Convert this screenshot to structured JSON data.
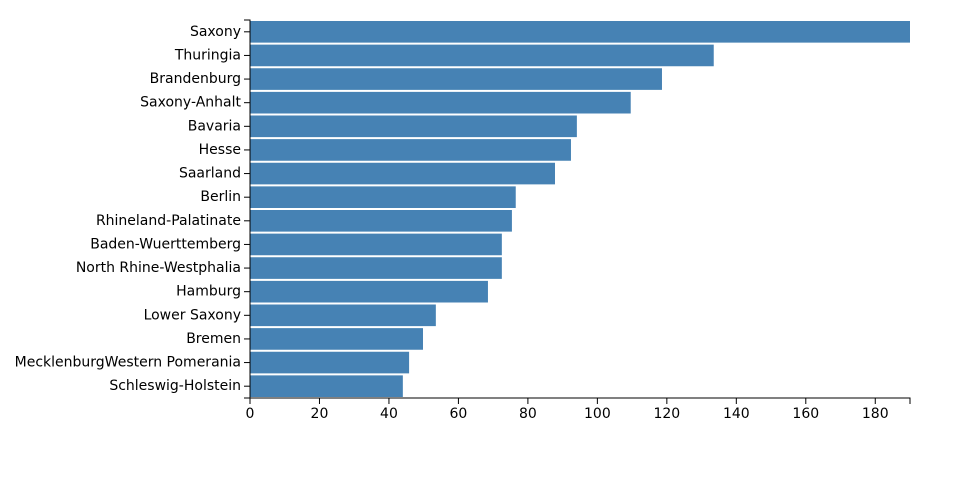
{
  "chart_data": {
    "type": "bar",
    "orientation": "horizontal",
    "categories": [
      "Saxony",
      "Thuringia",
      "Brandenburg",
      "Saxony-Anhalt",
      "Bavaria",
      "Hesse",
      "Saarland",
      "Berlin",
      "Rhineland-Palatinate",
      "Baden-Wuerttemberg",
      "North Rhine-Westphalia",
      "Hamburg",
      "Lower Saxony",
      "Bremen",
      "MecklenburgWestern Pomerania",
      "Schleswig-Holstein"
    ],
    "values": [
      190,
      133.5,
      118.6,
      109.6,
      94.1,
      92.4,
      87.8,
      76.5,
      75.4,
      72.5,
      72.5,
      68.5,
      53.5,
      49.8,
      45.8,
      44
    ],
    "color": "#4682b4",
    "xlim": [
      0,
      190
    ],
    "xticks": [
      0,
      20,
      40,
      60,
      80,
      100,
      120,
      140,
      160,
      180
    ],
    "grid": false
  }
}
